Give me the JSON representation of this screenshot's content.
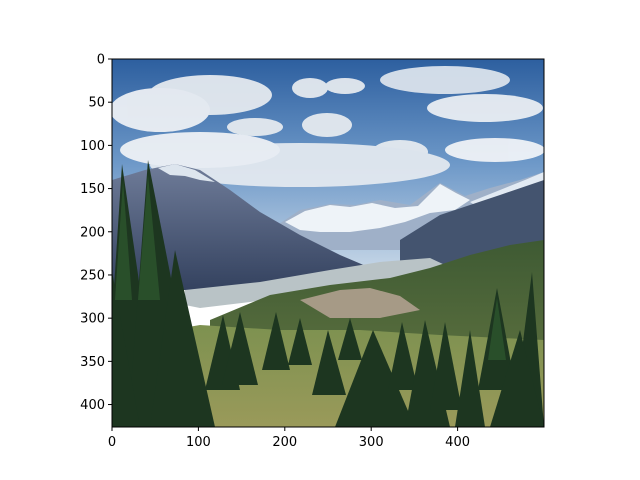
{
  "chart_data": {
    "type": "image",
    "xlim": [
      0,
      500
    ],
    "ylim": [
      426,
      0
    ],
    "x_ticks": [
      0,
      100,
      200,
      300,
      400
    ],
    "y_ticks": [
      0,
      50,
      100,
      150,
      200,
      250,
      300,
      350,
      400
    ],
    "x_tick_labels": [
      "0",
      "100",
      "200",
      "300",
      "400"
    ],
    "y_tick_labels": [
      "0",
      "50",
      "100",
      "150",
      "200",
      "250",
      "300",
      "350",
      "400"
    ],
    "grid": false
  },
  "colors": {
    "sky_top": "#2f63a3",
    "sky_low": "#a9c3df",
    "mountain": "#4a5878",
    "snow": "#e4ecf4",
    "forest": "#1f3a22",
    "meadow": "#7e8f4a"
  },
  "image": {
    "subject": "mountain-valley-landscape"
  }
}
